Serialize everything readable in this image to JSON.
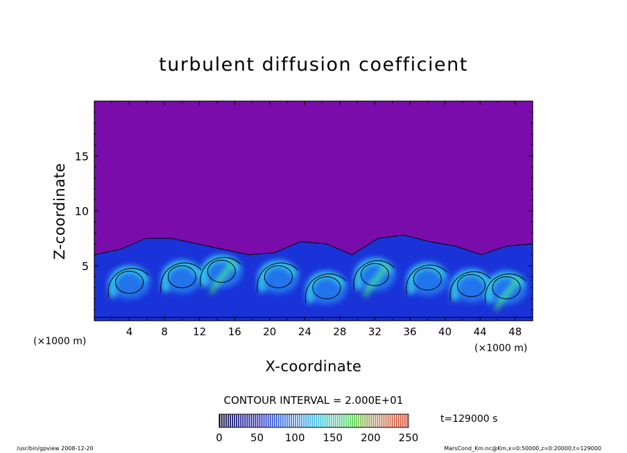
{
  "chart_data": {
    "type": "heatmap",
    "title": "turbulent diffusion coefficient",
    "xlabel": "X-coordinate",
    "ylabel": "Z-coordinate",
    "x_unit": "(×1000 m)",
    "y_unit": "(×1000 m)",
    "xlim": [
      0,
      50
    ],
    "ylim": [
      0,
      20
    ],
    "x_ticks": [
      "4",
      "8",
      "12",
      "16",
      "20",
      "24",
      "28",
      "32",
      "36",
      "40",
      "44",
      "48"
    ],
    "y_ticks": [
      "5",
      "10",
      "15"
    ],
    "contour_interval_label": "CONTOUR INTERVAL = 2.000E+01",
    "colorbar": {
      "range": [
        0,
        250
      ],
      "tick_labels": [
        "0",
        "50",
        "100",
        "150",
        "200",
        "250"
      ]
    },
    "time_label": "t=129000 s",
    "background_value": 0,
    "boundary_layer_top_km": [
      6.0,
      6.5,
      7.5,
      7.5,
      7.0,
      6.5,
      6.0,
      6.2,
      7.2,
      7.0,
      6.0,
      7.5,
      7.8,
      7.2,
      6.8,
      6.0,
      6.8,
      7.0
    ],
    "eddy_centers_km": [
      [
        4,
        3.5
      ],
      [
        10,
        4.0
      ],
      [
        14.5,
        4.5
      ],
      [
        21,
        4.0
      ],
      [
        26.5,
        3.0
      ],
      [
        32,
        4.2
      ],
      [
        38,
        3.8
      ],
      [
        43,
        3.2
      ],
      [
        47,
        3.0
      ]
    ],
    "colors": {
      "background": "#7a0cab",
      "low": "#1a33d9",
      "mid": "#2277ee",
      "high": "#35c8e8",
      "peak": "#3fe86a"
    }
  },
  "footer": {
    "left": "/usr/bin/gpview   2008-12-20",
    "right": "MarsCond_Km.nc@Km,x=0:50000,z=0:20000,t=129000"
  }
}
